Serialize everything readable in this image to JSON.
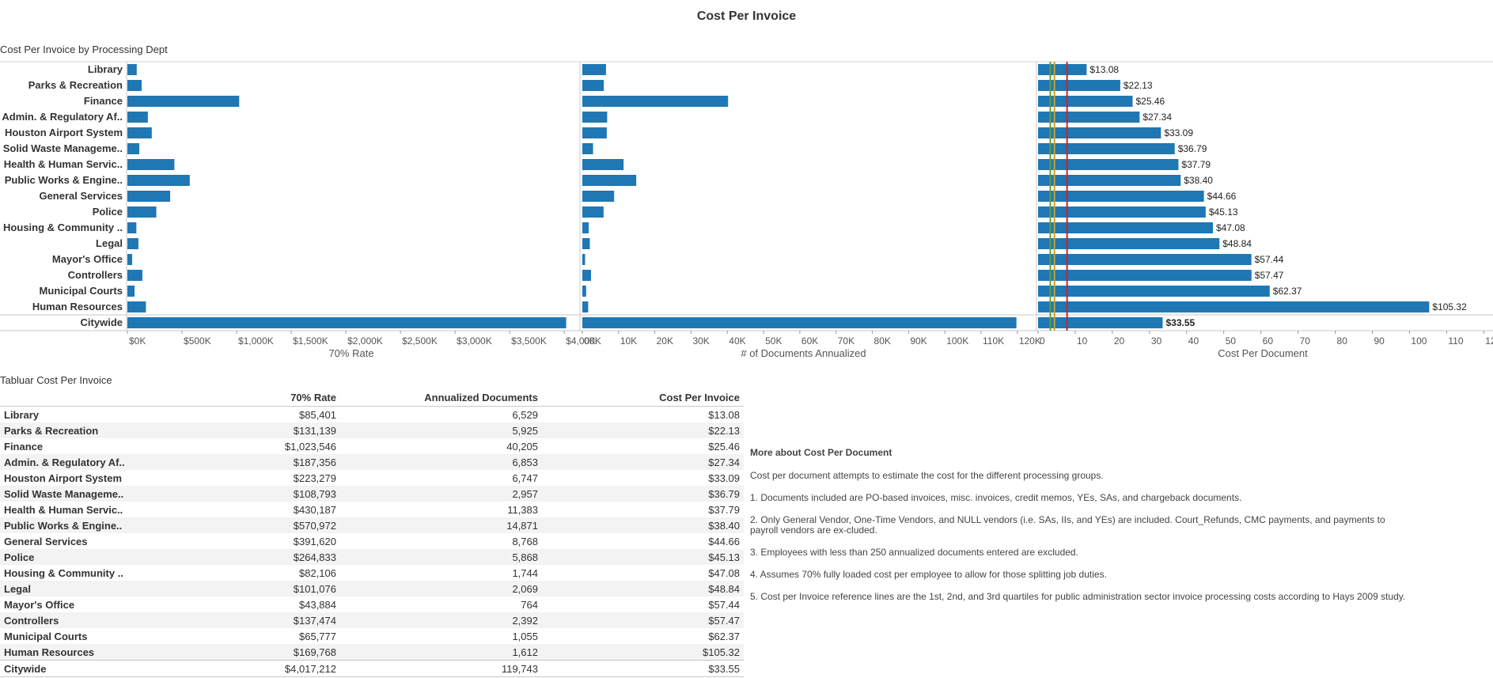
{
  "page_title": "Cost Per Invoice",
  "chart_section_title": "Cost Per Invoice by Processing Dept",
  "table_section_title": "Tabluar Cost Per Invoice",
  "colors": {
    "bar": "#1f77b4",
    "ref_line_gold": "#c9a227",
    "ref_line_green": "#6a9a3a",
    "ref_line_red": "#c0272d"
  },
  "chart_data": [
    {
      "type": "bar",
      "orientation": "horizontal",
      "title": "70% Rate",
      "xlabel": "70% Rate",
      "categories": [
        "Library",
        "Parks & Recreation",
        "Finance",
        "Admin. & Regulatory Af..",
        "Houston Airport System",
        "Solid Waste Manageme..",
        "Health & Human Servic..",
        "Public Works & Engine..",
        "General Services",
        "Police",
        "Housing & Community ..",
        "Legal",
        "Mayor's Office",
        "Controllers",
        "Municipal Courts",
        "Human Resources",
        "Citywide"
      ],
      "values": [
        85401,
        131139,
        1023546,
        187356,
        223279,
        108793,
        430187,
        570972,
        391620,
        264833,
        82106,
        101076,
        43884,
        137474,
        65777,
        169768,
        4017212
      ],
      "xlim": [
        0,
        4100000
      ],
      "ticks": [
        0,
        500000,
        1000000,
        1500000,
        2000000,
        2500000,
        3000000,
        3500000,
        4000000
      ],
      "tick_labels": [
        "$0K",
        "$500K",
        "$1,000K",
        "$1,500K",
        "$2,000K",
        "$2,500K",
        "$3,000K",
        "$3,500K",
        "$4,000K"
      ],
      "grid": false
    },
    {
      "type": "bar",
      "orientation": "horizontal",
      "title": "# of Documents Annualized",
      "xlabel": "# of Documents Annualized",
      "categories": [
        "Library",
        "Parks & Recreation",
        "Finance",
        "Admin. & Regulatory Af..",
        "Houston Airport System",
        "Solid Waste Manageme..",
        "Health & Human Servic..",
        "Public Works & Engine..",
        "General Services",
        "Police",
        "Housing & Community ..",
        "Legal",
        "Mayor's Office",
        "Controllers",
        "Municipal Courts",
        "Human Resources",
        "Citywide"
      ],
      "values": [
        6529,
        5925,
        40205,
        6853,
        6747,
        2957,
        11383,
        14871,
        8768,
        5868,
        1744,
        2069,
        764,
        2392,
        1055,
        1612,
        119743
      ],
      "xlim": [
        0,
        122000
      ],
      "ticks": [
        0,
        10000,
        20000,
        30000,
        40000,
        50000,
        60000,
        70000,
        80000,
        90000,
        100000,
        110000,
        120000
      ],
      "tick_labels": [
        "0K",
        "10K",
        "20K",
        "30K",
        "40K",
        "50K",
        "60K",
        "70K",
        "80K",
        "90K",
        "100K",
        "110K",
        "120K"
      ],
      "grid": false
    },
    {
      "type": "bar",
      "orientation": "horizontal",
      "title": "Cost Per Document",
      "xlabel": "Cost Per Document",
      "categories": [
        "Library",
        "Parks & Recreation",
        "Finance",
        "Admin. & Regulatory Af..",
        "Houston Airport System",
        "Solid Waste Manageme..",
        "Health & Human Servic..",
        "Public Works & Engine..",
        "General Services",
        "Police",
        "Housing & Community ..",
        "Legal",
        "Mayor's Office",
        "Controllers",
        "Municipal Courts",
        "Human Resources",
        "Citywide"
      ],
      "values": [
        13.08,
        22.13,
        25.46,
        27.34,
        33.09,
        36.79,
        37.79,
        38.4,
        44.66,
        45.13,
        47.08,
        48.84,
        57.44,
        57.47,
        62.37,
        105.32,
        33.55
      ],
      "data_labels": [
        "$13.08",
        "$22.13",
        "$25.46",
        "$27.34",
        "$33.09",
        "$36.79",
        "$37.79",
        "$38.40",
        "$44.66",
        "$45.13",
        "$47.08",
        "$48.84",
        "$57.44",
        "$57.47",
        "$62.37",
        "$105.32",
        "$33.55"
      ],
      "xlim": [
        0,
        121
      ],
      "ticks": [
        0,
        10,
        20,
        30,
        40,
        50,
        60,
        70,
        80,
        90,
        100,
        110,
        120
      ],
      "tick_labels": [
        "0",
        "10",
        "20",
        "30",
        "40",
        "50",
        "60",
        "70",
        "80",
        "90",
        "100",
        "110",
        "120"
      ],
      "reference_lines": [
        {
          "value": 3.3,
          "color": "#6a9a3a",
          "label": "1st quartile"
        },
        {
          "value": 4.4,
          "color": "#c9a227",
          "label": "2nd quartile"
        },
        {
          "value": 7.8,
          "color": "#c0272d",
          "label": "3rd quartile"
        }
      ],
      "grid": false
    }
  ],
  "table": {
    "headers": [
      "",
      "70% Rate",
      "Annualized Documents",
      "Cost Per Invoice"
    ],
    "rows": [
      [
        "Library",
        "$85,401",
        "6,529",
        "$13.08"
      ],
      [
        "Parks & Recreation",
        "$131,139",
        "5,925",
        "$22.13"
      ],
      [
        "Finance",
        "$1,023,546",
        "40,205",
        "$25.46"
      ],
      [
        "Admin. & Regulatory Af..",
        "$187,356",
        "6,853",
        "$27.34"
      ],
      [
        "Houston Airport System",
        "$223,279",
        "6,747",
        "$33.09"
      ],
      [
        "Solid Waste Manageme..",
        "$108,793",
        "2,957",
        "$36.79"
      ],
      [
        "Health & Human Servic..",
        "$430,187",
        "11,383",
        "$37.79"
      ],
      [
        "Public Works & Engine..",
        "$570,972",
        "14,871",
        "$38.40"
      ],
      [
        "General Services",
        "$391,620",
        "8,768",
        "$44.66"
      ],
      [
        "Police",
        "$264,833",
        "5,868",
        "$45.13"
      ],
      [
        "Housing & Community ..",
        "$82,106",
        "1,744",
        "$47.08"
      ],
      [
        "Legal",
        "$101,076",
        "2,069",
        "$48.84"
      ],
      [
        "Mayor's Office",
        "$43,884",
        "764",
        "$57.44"
      ],
      [
        "Controllers",
        "$137,474",
        "2,392",
        "$57.47"
      ],
      [
        "Municipal Courts",
        "$65,777",
        "1,055",
        "$62.37"
      ],
      [
        "Human Resources",
        "$169,768",
        "1,612",
        "$105.32"
      ]
    ],
    "total": [
      "Citywide",
      "$4,017,212",
      "119,743",
      "$33.55"
    ]
  },
  "notes": {
    "title": "More about Cost Per Document",
    "paragraphs": [
      "Cost per document attempts to estimate the cost for the different processing groups.",
      "1. Documents included are PO-based invoices, misc. invoices, credit memos, YEs, SAs, and chargeback documents.",
      "2. Only General Vendor, One-Time Vendors, and NULL vendors (i.e. SAs, IIs, and YEs) are included. Court_Refunds, CMC payments, and payments to payroll vendors are ex-cluded.",
      "3. Employees with less than 250 annualized documents entered are excluded.",
      "4. Assumes 70% fully loaded cost per employee to allow for those splitting job duties.",
      "5. Cost per Invoice reference lines are the 1st, 2nd, and 3rd quartiles for public administration sector invoice processing costs according to Hays 2009 study."
    ]
  }
}
